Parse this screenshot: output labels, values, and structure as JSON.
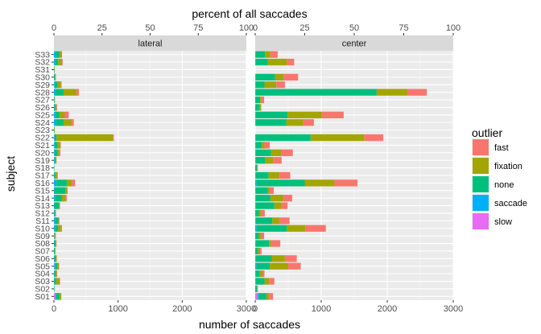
{
  "chart_data": {
    "type": "bar",
    "orientation": "horizontal",
    "stacked": true,
    "xlabel": "number of saccades",
    "ylabel": "subject",
    "secondary_axis_label": "percent of all saccades",
    "x_ticks": [
      0,
      1000,
      2000,
      3000
    ],
    "secondary_ticks": [
      0,
      25,
      50,
      75,
      100
    ],
    "xlim": [
      0,
      3000
    ],
    "legend": {
      "title": "outlier",
      "position": "right"
    },
    "panels": [
      "lateral",
      "center"
    ],
    "categories": [
      "S01",
      "S02",
      "S03",
      "S04",
      "S05",
      "S06",
      "S07",
      "S08",
      "S09",
      "S10",
      "S11",
      "S12",
      "S13",
      "S14",
      "S15",
      "S16",
      "S17",
      "S18",
      "S19",
      "S20",
      "S21",
      "S22",
      "S23",
      "S24",
      "S25",
      "S26",
      "S27",
      "S28",
      "S29",
      "S30",
      "S31",
      "S32",
      "S33"
    ],
    "series": [
      {
        "name": "fast",
        "color": "#F8766D"
      },
      {
        "name": "fixation",
        "color": "#A3A500"
      },
      {
        "name": "none",
        "color": "#00BF7D"
      },
      {
        "name": "saccade",
        "color": "#00B0F6"
      },
      {
        "name": "slow",
        "color": "#E76BF3"
      }
    ],
    "data": {
      "lateral": {
        "S01": {
          "slow": 20,
          "saccade": 10,
          "none": 60,
          "fixation": 25,
          "fast": 0
        },
        "S02": {
          "slow": 0,
          "saccade": 0,
          "none": 8,
          "fixation": 0,
          "fast": 0
        },
        "S03": {
          "slow": 0,
          "saccade": 5,
          "none": 30,
          "fixation": 55,
          "fast": 5
        },
        "S04": {
          "slow": 0,
          "saccade": 5,
          "none": 20,
          "fixation": 20,
          "fast": 5
        },
        "S05": {
          "slow": 5,
          "saccade": 15,
          "none": 35,
          "fixation": 20,
          "fast": 5
        },
        "S06": {
          "slow": 0,
          "saccade": 5,
          "none": 20,
          "fixation": 15,
          "fast": 5
        },
        "S07": {
          "slow": 0,
          "saccade": 0,
          "none": 15,
          "fixation": 5,
          "fast": 5
        },
        "S08": {
          "slow": 0,
          "saccade": 5,
          "none": 20,
          "fixation": 10,
          "fast": 5
        },
        "S09": {
          "slow": 0,
          "saccade": 0,
          "none": 10,
          "fixation": 10,
          "fast": 10
        },
        "S10": {
          "slow": 0,
          "saccade": 15,
          "none": 50,
          "fixation": 45,
          "fast": 15
        },
        "S11": {
          "slow": 0,
          "saccade": 20,
          "none": 50,
          "fixation": 10,
          "fast": 5
        },
        "S12": {
          "slow": 0,
          "saccade": 5,
          "none": 15,
          "fixation": 5,
          "fast": 5
        },
        "S13": {
          "slow": 0,
          "saccade": 5,
          "none": 70,
          "fixation": 15,
          "fast": 5
        },
        "S14": {
          "slow": 0,
          "saccade": 15,
          "none": 110,
          "fixation": 60,
          "fast": 15
        },
        "S15": {
          "slow": 0,
          "saccade": 5,
          "none": 180,
          "fixation": 20,
          "fast": 10
        },
        "S16": {
          "slow": 0,
          "saccade": 40,
          "none": 160,
          "fixation": 80,
          "fast": 50
        },
        "S17": {
          "slow": 0,
          "saccade": 5,
          "none": 15,
          "fixation": 30,
          "fast": 10
        },
        "S18": {
          "slow": 0,
          "saccade": 0,
          "none": 5,
          "fixation": 0,
          "fast": 0
        },
        "S19": {
          "slow": 0,
          "saccade": 5,
          "none": 20,
          "fixation": 10,
          "fast": 5
        },
        "S20": {
          "slow": 0,
          "saccade": 10,
          "none": 50,
          "fixation": 25,
          "fast": 15
        },
        "S21": {
          "slow": 0,
          "saccade": 10,
          "none": 50,
          "fixation": 40,
          "fast": 5
        },
        "S22": {
          "slow": 0,
          "saccade": 10,
          "none": 30,
          "fixation": 880,
          "fast": 15
        },
        "S23": {
          "slow": 0,
          "saccade": 0,
          "none": 5,
          "fixation": 5,
          "fast": 0
        },
        "S24": {
          "slow": 0,
          "saccade": 30,
          "none": 120,
          "fixation": 130,
          "fast": 30
        },
        "S25": {
          "slow": 0,
          "saccade": 20,
          "none": 70,
          "fixation": 80,
          "fast": 60
        },
        "S26": {
          "slow": 0,
          "saccade": 5,
          "none": 15,
          "fixation": 20,
          "fast": 10
        },
        "S27": {
          "slow": 0,
          "saccade": 0,
          "none": 10,
          "fixation": 5,
          "fast": 0
        },
        "S28": {
          "slow": 0,
          "saccade": 20,
          "none": 130,
          "fixation": 200,
          "fast": 40
        },
        "S29": {
          "slow": 0,
          "saccade": 10,
          "none": 50,
          "fixation": 50,
          "fast": 10
        },
        "S30": {
          "slow": 0,
          "saccade": 5,
          "none": 10,
          "fixation": 10,
          "fast": 5
        },
        "S31": {
          "slow": 0,
          "saccade": 0,
          "none": 5,
          "fixation": 5,
          "fast": 0
        },
        "S32": {
          "slow": 0,
          "saccade": 15,
          "none": 50,
          "fixation": 60,
          "fast": 10
        },
        "S33": {
          "slow": 0,
          "saccade": 20,
          "none": 70,
          "fixation": 30,
          "fast": 5
        }
      },
      "center": {
        "S01": {
          "slow": 40,
          "saccade": 10,
          "none": 120,
          "fixation": 40,
          "fast": 60
        },
        "S02": {
          "slow": 0,
          "saccade": 5,
          "none": 20,
          "fixation": 10,
          "fast": 5
        },
        "S03": {
          "slow": 0,
          "saccade": 10,
          "none": 130,
          "fixation": 70,
          "fast": 80
        },
        "S04": {
          "slow": 0,
          "saccade": 10,
          "none": 60,
          "fixation": 40,
          "fast": 30
        },
        "S05": {
          "slow": 0,
          "saccade": 20,
          "none": 200,
          "fixation": 280,
          "fast": 190
        },
        "S06": {
          "slow": 0,
          "saccade": 10,
          "none": 240,
          "fixation": 200,
          "fast": 180
        },
        "S07": {
          "slow": 0,
          "saccade": 5,
          "none": 40,
          "fixation": 30,
          "fast": 20
        },
        "S08": {
          "slow": 0,
          "saccade": 10,
          "none": 200,
          "fixation": 30,
          "fast": 140
        },
        "S09": {
          "slow": 0,
          "saccade": 5,
          "none": 50,
          "fixation": 30,
          "fast": 50
        },
        "S10": {
          "slow": 0,
          "saccade": 20,
          "none": 460,
          "fixation": 280,
          "fast": 310
        },
        "S11": {
          "slow": 0,
          "saccade": 10,
          "none": 250,
          "fixation": 110,
          "fast": 150
        },
        "S12": {
          "slow": 0,
          "saccade": 5,
          "none": 50,
          "fixation": 40,
          "fast": 50
        },
        "S13": {
          "slow": 0,
          "saccade": 10,
          "none": 280,
          "fixation": 110,
          "fast": 90
        },
        "S14": {
          "slow": 0,
          "saccade": 10,
          "none": 220,
          "fixation": 200,
          "fast": 130
        },
        "S15": {
          "slow": 0,
          "saccade": 10,
          "none": 180,
          "fixation": 30,
          "fast": 60
        },
        "S16": {
          "slow": 0,
          "saccade": 20,
          "none": 730,
          "fixation": 450,
          "fast": 350
        },
        "S17": {
          "slow": 0,
          "saccade": 10,
          "none": 190,
          "fixation": 170,
          "fast": 160
        },
        "S18": {
          "slow": 0,
          "saccade": 5,
          "none": 20,
          "fixation": 10,
          "fast": 5
        },
        "S19": {
          "slow": 0,
          "saccade": 10,
          "none": 140,
          "fixation": 120,
          "fast": 130
        },
        "S20": {
          "slow": 0,
          "saccade": 10,
          "none": 230,
          "fixation": 150,
          "fast": 180
        },
        "S21": {
          "slow": 0,
          "saccade": 10,
          "none": 90,
          "fixation": 40,
          "fast": 80
        },
        "S22": {
          "slow": 0,
          "saccade": 10,
          "none": 830,
          "fixation": 810,
          "fast": 290
        },
        "S23": {
          "slow": 0,
          "saccade": 0,
          "none": 0,
          "fixation": 0,
          "fast": 0
        },
        "S24": {
          "slow": 0,
          "saccade": 10,
          "none": 460,
          "fixation": 260,
          "fast": 160
        },
        "S25": {
          "slow": 0,
          "saccade": 10,
          "none": 480,
          "fixation": 520,
          "fast": 330
        },
        "S26": {
          "slow": 0,
          "saccade": 5,
          "none": 60,
          "fixation": 20,
          "fast": 5
        },
        "S27": {
          "slow": 0,
          "saccade": 5,
          "none": 70,
          "fixation": 20,
          "fast": 40
        },
        "S28": {
          "slow": 0,
          "saccade": 10,
          "none": 1830,
          "fixation": 470,
          "fast": 290
        },
        "S29": {
          "slow": 0,
          "saccade": 10,
          "none": 130,
          "fixation": 180,
          "fast": 130
        },
        "S30": {
          "slow": 0,
          "saccade": 10,
          "none": 290,
          "fixation": 130,
          "fast": 220
        },
        "S31": {
          "slow": 0,
          "saccade": 0,
          "none": 0,
          "fixation": 0,
          "fast": 0
        },
        "S32": {
          "slow": 0,
          "saccade": 10,
          "none": 180,
          "fixation": 290,
          "fast": 110
        },
        "S33": {
          "slow": 0,
          "saccade": 10,
          "none": 140,
          "fixation": 80,
          "fast": 110
        }
      }
    }
  }
}
